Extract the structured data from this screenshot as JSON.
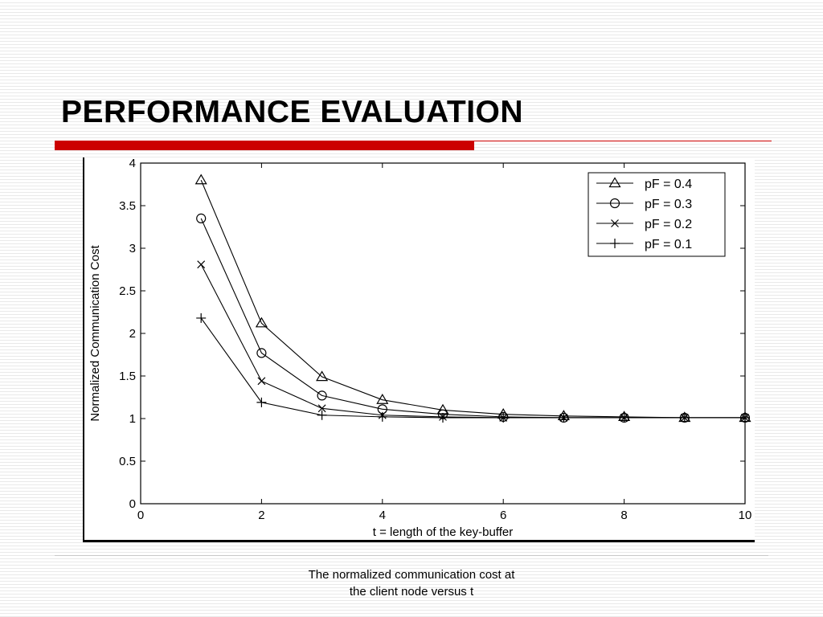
{
  "slide": {
    "title": "PERFORMANCE EVALUATION",
    "caption": "The normalized communication cost at the client node versus t"
  },
  "chart_data": {
    "type": "line",
    "title": "",
    "xlabel": "t = length of the key-buffer",
    "ylabel": "Normalized Communication Cost",
    "xlim": [
      0,
      10
    ],
    "ylim": [
      0,
      4
    ],
    "xticks": [
      0,
      2,
      4,
      6,
      8,
      10
    ],
    "yticks": [
      0,
      0.5,
      1,
      1.5,
      2,
      2.5,
      3,
      3.5,
      4
    ],
    "grid": false,
    "legend_position": "top-right",
    "x": [
      1,
      2,
      3,
      4,
      5,
      6,
      7,
      8,
      9,
      10
    ],
    "series": [
      {
        "name": "pF = 0.4",
        "marker": "triangle",
        "values": [
          3.8,
          2.12,
          1.49,
          1.22,
          1.1,
          1.05,
          1.03,
          1.02,
          1.01,
          1.01
        ]
      },
      {
        "name": "pF = 0.3",
        "marker": "circle",
        "values": [
          3.35,
          1.77,
          1.27,
          1.11,
          1.05,
          1.02,
          1.01,
          1.01,
          1.01,
          1.01
        ]
      },
      {
        "name": "pF = 0.2",
        "marker": "x",
        "values": [
          2.81,
          1.44,
          1.12,
          1.04,
          1.02,
          1.01,
          1.01,
          1.01,
          1.01,
          1.01
        ]
      },
      {
        "name": "pF = 0.1",
        "marker": "plus",
        "values": [
          2.18,
          1.19,
          1.04,
          1.02,
          1.01,
          1.01,
          1.01,
          1.01,
          1.01,
          1.01
        ]
      }
    ]
  }
}
